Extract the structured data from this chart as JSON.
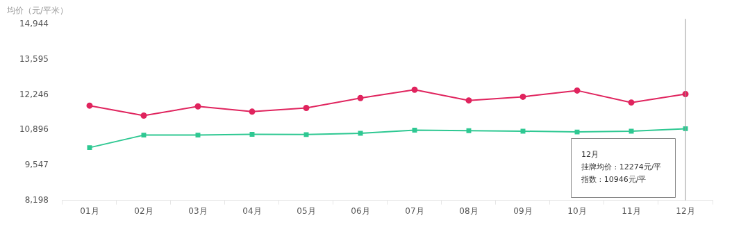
{
  "chart_data": {
    "type": "line",
    "ylabel": "均价（元/平米）",
    "categories": [
      "01月",
      "02月",
      "03月",
      "04月",
      "05月",
      "06月",
      "07月",
      "08月",
      "09月",
      "10月",
      "11月",
      "12月"
    ],
    "series": [
      {
        "color": "#e0245e",
        "marker": "circle",
        "values": [
          11830,
          11450,
          11800,
          11600,
          11740,
          12120,
          12440,
          12030,
          12170,
          12410,
          11950,
          12274
        ]
      },
      {
        "color": "#2ec892",
        "marker": "square",
        "values": [
          10220,
          10700,
          10700,
          10730,
          10720,
          10770,
          10890,
          10870,
          10850,
          10820,
          10850,
          10946
        ]
      }
    ],
    "ylim": [
      8198,
      14944
    ],
    "yticks": [
      {
        "value": 8198,
        "label": "8,198"
      },
      {
        "value": 9547,
        "label": "9,547"
      },
      {
        "value": 10896,
        "label": "10,896"
      },
      {
        "value": 12246,
        "label": "12,246"
      },
      {
        "value": 13595,
        "label": "13,595"
      },
      {
        "value": 14944,
        "label": "14,944"
      }
    ],
    "grid": false,
    "legend": false,
    "ref_lines": [
      {
        "axis": "x",
        "value": "12月",
        "color": "#999999"
      }
    ],
    "annotations": [
      "12月",
      "挂牌均价 : 12274元/平",
      "指数 : 10946元/平"
    ]
  }
}
